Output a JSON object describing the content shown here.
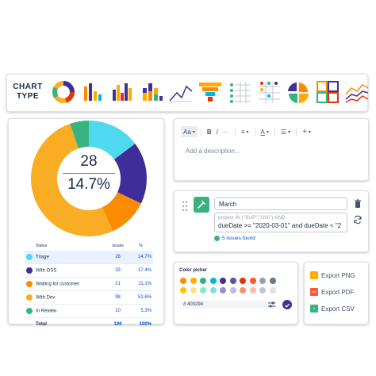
{
  "chart_type_bar": {
    "label_line1": "CHART",
    "label_line2": "TYPE",
    "types": [
      "donut-icon",
      "bar-chart-icon",
      "stacked-bar-icon",
      "stacked-column-icon",
      "line-chart-icon",
      "funnel-icon",
      "table-grid-icon",
      "bubble-grid-icon",
      "pie-exploded-icon",
      "treemap-icon",
      "multi-line-icon"
    ]
  },
  "donut": {
    "count": "28",
    "percent": "14.7%",
    "colors": {
      "triage": "#4fd9f0",
      "with_oss": "#3f2d99",
      "waiting": "#fb8c00",
      "with_dev": "#f9ad24",
      "in_review": "#36b37e"
    }
  },
  "legend_table": {
    "headers": {
      "status": "Status",
      "issues": "Issues",
      "pct": "%"
    },
    "rows": [
      {
        "label": "Triage",
        "issues": "28",
        "pct": "14.7%",
        "color": "#4fd9f0"
      },
      {
        "label": "With OSS",
        "issues": "33",
        "pct": "17.4%",
        "color": "#3f2d99"
      },
      {
        "label": "Waiting for customer",
        "issues": "21",
        "pct": "11.1%",
        "color": "#fb8c00"
      },
      {
        "label": "With Dev",
        "issues": "98",
        "pct": "51.6%",
        "color": "#f9ad24"
      },
      {
        "label": "In Review",
        "issues": "10",
        "pct": "5.3%",
        "color": "#36b37e"
      }
    ],
    "total": {
      "label": "Total",
      "issues": "190",
      "pct": "100%"
    }
  },
  "editor": {
    "toolbar": {
      "text_style": "Aa",
      "bold": "B",
      "italic": "I",
      "more": "···",
      "align": "≡",
      "color": "A",
      "list": "☰",
      "insert": "+"
    },
    "placeholder": "Add a description..."
  },
  "filter": {
    "name_value": "March",
    "query_line1": "project IN (\"SUP\",\"UNI\") AND",
    "query_line2": "dueDate >= \"2020-03-01\" and dueDate < \"2",
    "issues_found": "5 issues found",
    "swatch_color": "#36b37e"
  },
  "color_picker": {
    "title": "Color picker",
    "hex_value": "# 403294",
    "selected": "#403294",
    "row1": [
      "#ff8b00",
      "#ffab00",
      "#36b37e",
      "#00b8d9",
      "#403294",
      "#5e4db2",
      "#de350b",
      "#ff5630",
      "#97a0af",
      "#6b778c"
    ],
    "row2": [
      "#ffc400",
      "#ffe380",
      "#79f2c0",
      "#79e2f2",
      "#998dd9",
      "#c0b6f2",
      "#ff8f73",
      "#ffbdad",
      "#c1c7d0",
      "#dfe1e6"
    ]
  },
  "export": {
    "png": "Export PNG",
    "pdf": "Export PDF",
    "csv": "Export CSV"
  }
}
